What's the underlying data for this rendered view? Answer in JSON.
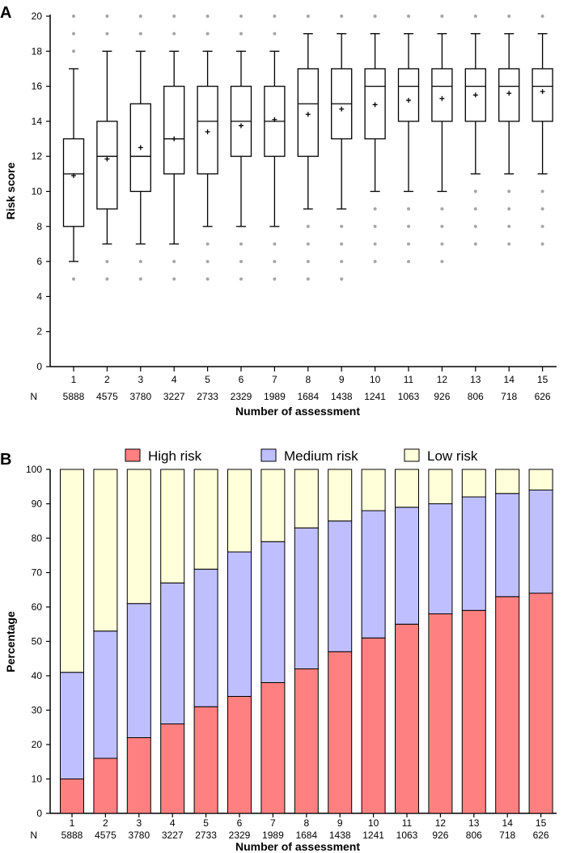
{
  "chart_data": [
    {
      "type": "boxplot",
      "panel_label": "A",
      "ylabel": "Risk score",
      "xlabel": "Number of assessment",
      "n_prefix": "N",
      "ylim": [
        0,
        20
      ],
      "yticks": [
        0,
        2,
        4,
        6,
        8,
        10,
        12,
        14,
        16,
        18,
        20
      ],
      "categories": [
        "1",
        "2",
        "3",
        "4",
        "5",
        "6",
        "7",
        "8",
        "9",
        "10",
        "11",
        "12",
        "13",
        "14",
        "15"
      ],
      "n": [
        "5888",
        "4575",
        "3780",
        "3227",
        "2733",
        "2329",
        "1989",
        "1684",
        "1438",
        "1241",
        "1063",
        "926",
        "806",
        "718",
        "626"
      ],
      "colors": {
        "outlier": "#A6A6A6",
        "box": "#000000"
      },
      "boxes": [
        {
          "whisker_low": 6,
          "q1": 8,
          "median": 11,
          "q3": 13,
          "whisker_high": 17,
          "mean": 10.9,
          "outliers": [
            5,
            18,
            19,
            20
          ]
        },
        {
          "whisker_low": 7,
          "q1": 9,
          "median": 12,
          "q3": 14,
          "whisker_high": 18,
          "mean": 11.85,
          "outliers": [
            5,
            6,
            19,
            20
          ]
        },
        {
          "whisker_low": 7,
          "q1": 10,
          "median": 12,
          "q3": 15,
          "whisker_high": 18,
          "mean": 12.5,
          "outliers": [
            5,
            6,
            19,
            20
          ]
        },
        {
          "whisker_low": 7,
          "q1": 11,
          "median": 13,
          "q3": 16,
          "whisker_high": 18,
          "mean": 13.0,
          "outliers": [
            5,
            6,
            19,
            20
          ]
        },
        {
          "whisker_low": 8,
          "q1": 11,
          "median": 14,
          "q3": 16,
          "whisker_high": 18,
          "mean": 13.4,
          "outliers": [
            5,
            6,
            7,
            19,
            20
          ]
        },
        {
          "whisker_low": 8,
          "q1": 12,
          "median": 14,
          "q3": 16,
          "whisker_high": 18,
          "mean": 13.75,
          "outliers": [
            5,
            6,
            7,
            19,
            20
          ]
        },
        {
          "whisker_low": 8,
          "q1": 12,
          "median": 14,
          "q3": 16,
          "whisker_high": 18,
          "mean": 14.1,
          "outliers": [
            5,
            6,
            7,
            19,
            20
          ]
        },
        {
          "whisker_low": 9,
          "q1": 12,
          "median": 15,
          "q3": 17,
          "whisker_high": 19,
          "mean": 14.4,
          "outliers": [
            5,
            6,
            7,
            8,
            20
          ]
        },
        {
          "whisker_low": 9,
          "q1": 13,
          "median": 15,
          "q3": 17,
          "whisker_high": 19,
          "mean": 14.7,
          "outliers": [
            5,
            6,
            7,
            8,
            20
          ]
        },
        {
          "whisker_low": 10,
          "q1": 13,
          "median": 16,
          "q3": 17,
          "whisker_high": 19,
          "mean": 14.95,
          "outliers": [
            6,
            7,
            8,
            9,
            20
          ]
        },
        {
          "whisker_low": 10,
          "q1": 14,
          "median": 16,
          "q3": 17,
          "whisker_high": 19,
          "mean": 15.2,
          "outliers": [
            6,
            7,
            8,
            9,
            20
          ]
        },
        {
          "whisker_low": 10,
          "q1": 14,
          "median": 16,
          "q3": 17,
          "whisker_high": 19,
          "mean": 15.3,
          "outliers": [
            6,
            7,
            8,
            9,
            20
          ]
        },
        {
          "whisker_low": 11,
          "q1": 14,
          "median": 16,
          "q3": 17,
          "whisker_high": 19,
          "mean": 15.5,
          "outliers": [
            7,
            8,
            9,
            10,
            20
          ]
        },
        {
          "whisker_low": 11,
          "q1": 14,
          "median": 16,
          "q3": 17,
          "whisker_high": 19,
          "mean": 15.6,
          "outliers": [
            7,
            8,
            9,
            10,
            20
          ]
        },
        {
          "whisker_low": 11,
          "q1": 14,
          "median": 16,
          "q3": 17,
          "whisker_high": 19,
          "mean": 15.7,
          "outliers": [
            7,
            8,
            9,
            10,
            20
          ]
        }
      ]
    },
    {
      "type": "bar",
      "stacked": true,
      "panel_label": "B",
      "ylabel": "Percentage",
      "xlabel": "Number of assessment",
      "n_prefix": "N",
      "ylim": [
        0,
        100
      ],
      "yticks": [
        0,
        10,
        20,
        30,
        40,
        50,
        60,
        70,
        80,
        90,
        100
      ],
      "legend_position": "top",
      "categories": [
        "1",
        "2",
        "3",
        "4",
        "5",
        "6",
        "7",
        "8",
        "9",
        "10",
        "11",
        "12",
        "13",
        "14",
        "15"
      ],
      "n": [
        "5888",
        "4575",
        "3780",
        "3227",
        "2733",
        "2329",
        "1989",
        "1684",
        "1438",
        "1241",
        "1063",
        "926",
        "806",
        "718",
        "626"
      ],
      "series": [
        {
          "name": "High risk",
          "color": "#FF8080",
          "values": [
            10,
            16,
            22,
            26,
            31,
            34,
            38,
            42,
            47,
            51,
            55,
            58,
            59,
            63,
            64
          ]
        },
        {
          "name": "Medium risk",
          "color": "#BFBFFF",
          "values": [
            31,
            37,
            39,
            41,
            40,
            42,
            41,
            41,
            38,
            37,
            34,
            32,
            33,
            30,
            30
          ]
        },
        {
          "name": "Low risk",
          "color": "#FFFFD9",
          "values": [
            59,
            47,
            39,
            33,
            29,
            24,
            21,
            17,
            15,
            12,
            11,
            10,
            8,
            7,
            6
          ]
        }
      ]
    }
  ]
}
